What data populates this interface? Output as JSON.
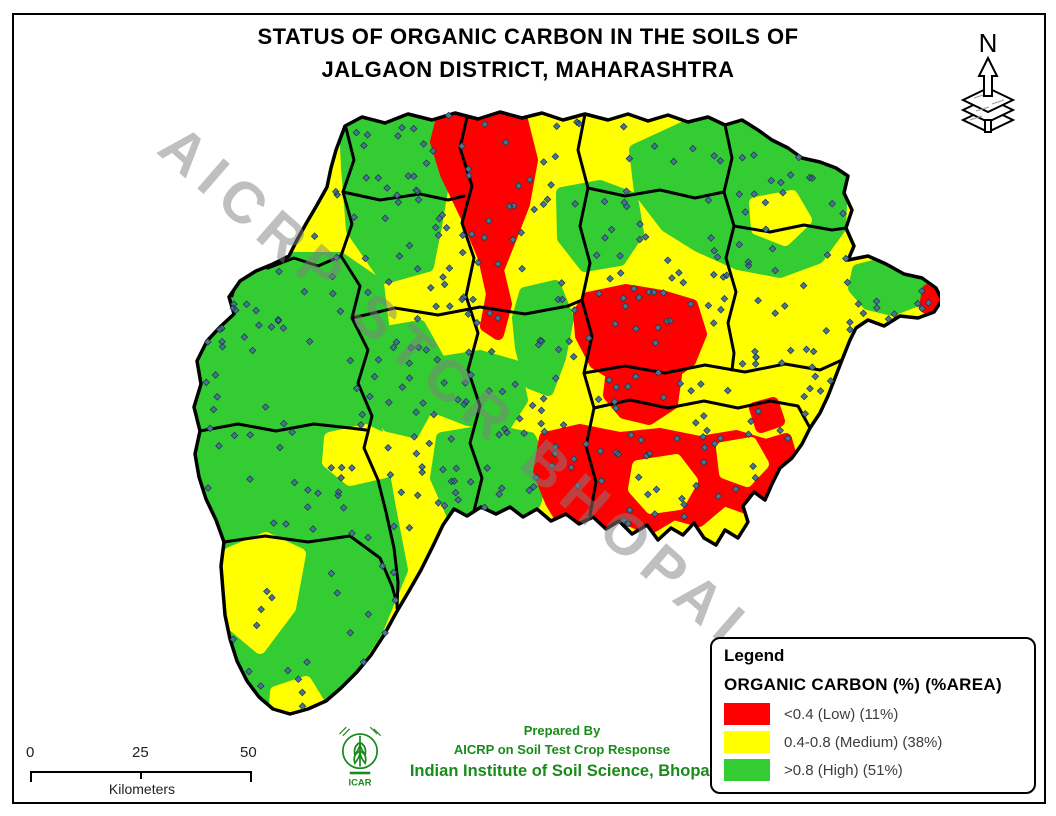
{
  "page": {
    "title_line1": "STATUS OF ORGANIC CARBON IN THE SOILS OF",
    "title_line2": "JALGAON DISTRICT, MAHARASHTRA"
  },
  "north_arrow": {
    "label": "N"
  },
  "watermark": {
    "text": "AICRP STCR BHOPAL"
  },
  "legend": {
    "title": "Legend",
    "subtitle": "ORGANIC CARBON (%) (%AREA)",
    "items": [
      {
        "label": "<0.4 (Low) (11%)",
        "color": "#ff0000"
      },
      {
        "label": "0.4-0.8 (Medium) (38%)",
        "color": "#ffff00"
      },
      {
        "label": ">0.8 (High) (51%)",
        "color": "#33cc33"
      }
    ]
  },
  "scale_bar": {
    "ticks": [
      "0",
      "25",
      "50"
    ],
    "unit": "Kilometers"
  },
  "credits": {
    "line1": "Prepared By",
    "line2": "AICRP on Soil Test Crop Response",
    "line3": "Indian Institute of Soil Science, Bhopal",
    "logo_text": "ICAR",
    "color": "#1a8a1a"
  },
  "map": {
    "colors": {
      "low": "#ff0000",
      "medium": "#ffff00",
      "high": "#33cc33",
      "sample_point": "#4c7490",
      "boundary": "#000000",
      "credit": "#1a8a1a"
    }
  }
}
